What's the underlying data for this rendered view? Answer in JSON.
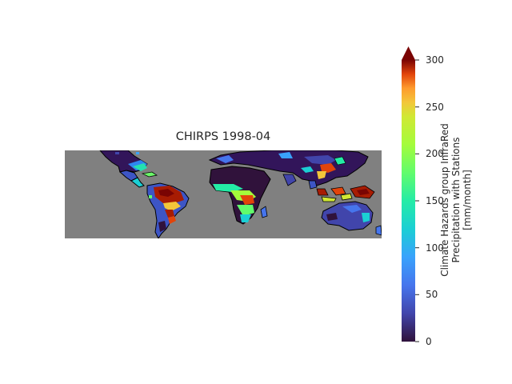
{
  "title": "CHIRPS 1998-04",
  "colorbar": {
    "label_lines": [
      "Climate Hazards group InfraRed",
      "Precipitation with Stations",
      "[mm/month]"
    ],
    "ticks": [
      0,
      50,
      100,
      150,
      200,
      250,
      300
    ],
    "range": [
      0,
      300
    ],
    "extend": "max",
    "colormap": "turbo"
  },
  "colors": {
    "no_data": "#808080",
    "coastline": "#000000",
    "low": "#30123b",
    "high": "#7a0403"
  }
}
